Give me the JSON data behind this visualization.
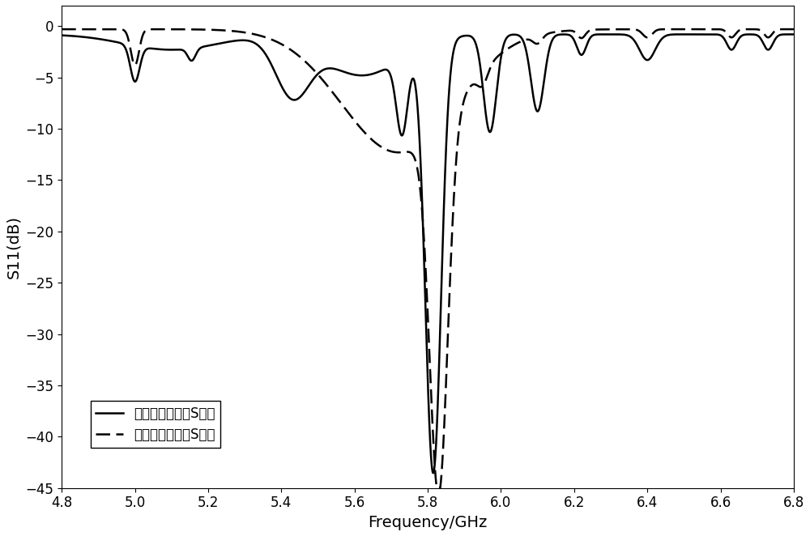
{
  "xlabel": "Frequency/GHz",
  "ylabel": "S11(dB)",
  "xlim": [
    4.8,
    6.8
  ],
  "ylim": [
    -45,
    2
  ],
  "xticks": [
    4.8,
    5.0,
    5.2,
    5.4,
    5.6,
    5.8,
    6.0,
    6.2,
    6.4,
    6.6,
    6.8
  ],
  "yticks": [
    0,
    -5,
    -10,
    -15,
    -20,
    -25,
    -30,
    -35,
    -40,
    -45
  ],
  "line1_label": "加载后模型实测S参数",
  "line2_label": "加载前模型实测S参数",
  "line_color": "#000000",
  "line_width": 1.8,
  "background_color": "#ffffff",
  "font_size_label": 14,
  "font_size_tick": 12,
  "font_size_legend": 12
}
